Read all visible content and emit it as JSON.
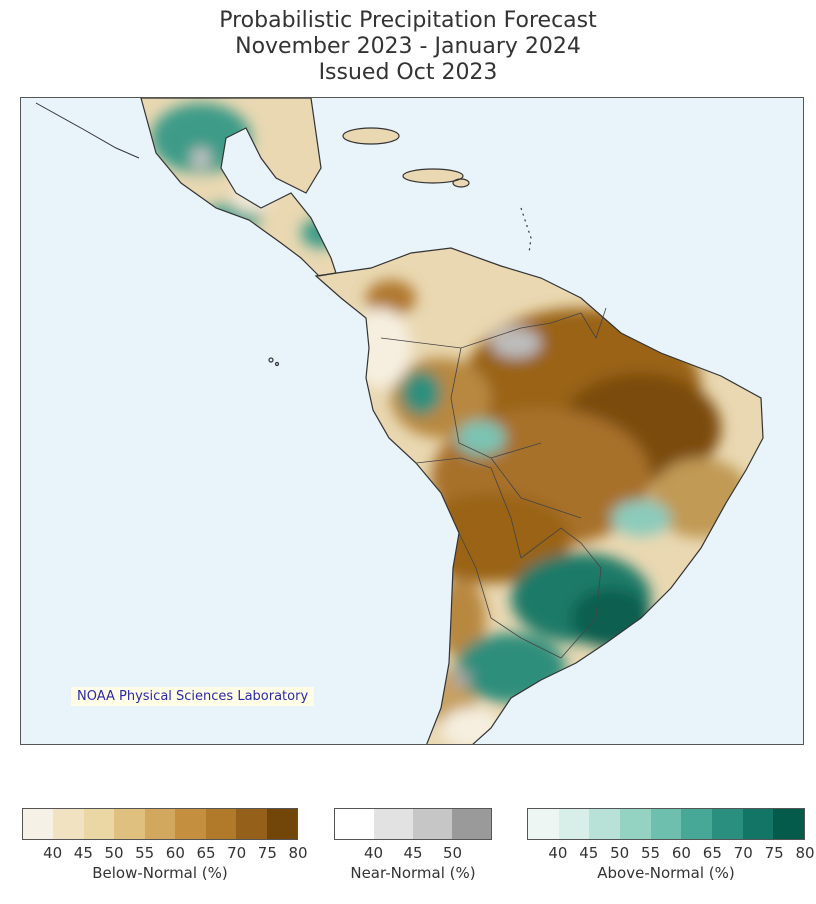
{
  "title": {
    "line1": "Probabilistic Precipitation Forecast",
    "line2": "November 2023 - January 2024",
    "line3": "Issued Oct 2023"
  },
  "map": {
    "credit": "NOAA Physical Sciences Laboratory",
    "ocean_color": "#e8f3fa",
    "border_color": "#333333"
  },
  "legends": {
    "below": {
      "caption": "Below-Normal (%)",
      "ticks": [
        "40",
        "45",
        "50",
        "55",
        "60",
        "65",
        "70",
        "75",
        "80"
      ],
      "colors": [
        "#f5f1e6",
        "#f1e3c1",
        "#ebd7a4",
        "#dfc07f",
        "#d2a85e",
        "#c48f3f",
        "#b07a2a",
        "#956019",
        "#724608"
      ]
    },
    "near": {
      "caption": "Near-Normal (%)",
      "ticks": [
        "40",
        "45",
        "50"
      ],
      "colors": [
        "#ffffff",
        "#e2e2e2",
        "#c6c6c6",
        "#9a9a9a"
      ]
    },
    "above": {
      "caption": "Above-Normal (%)",
      "ticks": [
        "40",
        "45",
        "50",
        "55",
        "60",
        "65",
        "70",
        "75",
        "80"
      ],
      "colors": [
        "#eef6f3",
        "#d8efe9",
        "#b8e2d7",
        "#94d2c2",
        "#6fbfae",
        "#48a898",
        "#2a8f7f",
        "#127566",
        "#045a4b"
      ]
    }
  }
}
